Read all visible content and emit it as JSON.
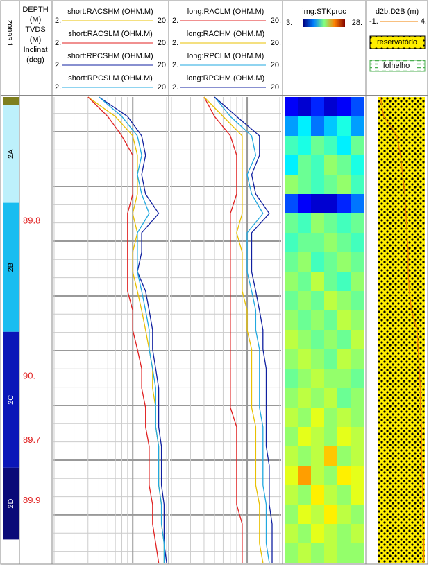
{
  "zones": {
    "title": "zonas 1",
    "intervals": [
      {
        "label": null,
        "color": "#7f7f1e",
        "top": 0,
        "base": 0.43
      },
      {
        "label": "2A",
        "color": "#bdf0fb",
        "top": 0.43,
        "base": 5.45
      },
      {
        "label": "2B",
        "color": "#19bdf0",
        "top": 5.45,
        "base": 12.1
      },
      {
        "label": "2C",
        "color": "#0a16b8",
        "top": 12.1,
        "base": 19.1
      },
      {
        "label": "2D",
        "color": "#0a0a78",
        "top": 19.1,
        "base": 22.8
      }
    ]
  },
  "depth": {
    "header": [
      "DEPTH",
      "(M)",
      "TVDS",
      "(M)",
      "Inclinat",
      "(deg)"
    ],
    "inclination": [
      {
        "value": 89.8,
        "label": "89.8",
        "depth": 6.4
      },
      {
        "value": 90,
        "label": "90.",
        "depth": 14.4
      },
      {
        "value": 89.7,
        "label": "89.7",
        "depth": 17.7
      },
      {
        "value": 89.9,
        "label": "89.9",
        "depth": 20.8
      }
    ]
  },
  "tracks": [
    {
      "curves": [
        {
          "name": "short:RACSHM (OHM.M)",
          "color": "#e8c000",
          "min": {
            "value": 2,
            "label": "2."
          },
          "max": {
            "value": 20,
            "label": "20."
          },
          "values": [
            4,
            7,
            10,
            11,
            11,
            11,
            10,
            11,
            10,
            10,
            11,
            12,
            13,
            14,
            15,
            15,
            16,
            16,
            17,
            17,
            17,
            18,
            18,
            19,
            19
          ]
        },
        {
          "name": "short:RACSLM (OHM.M)",
          "color": "#e02020",
          "min": {
            "value": 2,
            "label": "2."
          },
          "max": {
            "value": 20,
            "label": "20."
          },
          "values": [
            4,
            6,
            8,
            10,
            10,
            10,
            9,
            9,
            9,
            9,
            9,
            10,
            10,
            11,
            12,
            12,
            13,
            13,
            14,
            14,
            14,
            15,
            15,
            16,
            17
          ]
        },
        {
          "name": "short:RPCSHM (OHM.M)",
          "color": "#1020a0",
          "min": {
            "value": 2,
            "label": "2."
          },
          "max": {
            "value": 20,
            "label": "20."
          },
          "values": [
            5,
            9,
            12,
            13,
            12,
            13,
            17,
            12,
            12,
            11,
            13,
            14,
            15,
            15,
            16,
            17,
            17,
            17,
            18,
            18,
            18,
            19,
            19,
            19,
            20
          ]
        },
        {
          "name": "short:RPCSLM (OHM.M)",
          "color": "#20a8e0",
          "min": {
            "value": 2,
            "label": "2."
          },
          "max": {
            "value": 20,
            "label": "20."
          },
          "values": [
            5,
            8,
            11,
            12,
            11,
            12,
            14,
            11,
            11,
            11,
            12,
            13,
            14,
            14,
            15,
            16,
            16,
            16,
            17,
            17,
            17,
            18,
            18,
            19,
            19
          ]
        }
      ]
    },
    {
      "curves": [
        {
          "name": "long:RACLM (OHM.M)",
          "color": "#e02020",
          "min": {
            "value": 2,
            "label": "2."
          },
          "max": {
            "value": 20,
            "label": "20."
          },
          "values": [
            4,
            5,
            7,
            8,
            8,
            8,
            7,
            7,
            7,
            7,
            7,
            7,
            7,
            7,
            7,
            7,
            7,
            8,
            8,
            8,
            8,
            8,
            9,
            9,
            9
          ]
        },
        {
          "name": "long:RACHM (OHM.M)",
          "color": "#e8c000",
          "min": {
            "value": 2,
            "label": "2."
          },
          "max": {
            "value": 20,
            "label": "20."
          },
          "values": [
            4,
            6,
            9,
            9,
            9,
            9,
            9,
            8,
            9,
            9,
            9,
            10,
            10,
            11,
            11,
            11,
            11,
            12,
            12,
            12,
            12,
            13,
            13,
            13,
            14
          ]
        },
        {
          "name": "long:RPCLM (OHM.M)",
          "color": "#20a8e0",
          "min": {
            "value": 2,
            "label": "2."
          },
          "max": {
            "value": 20,
            "label": "20."
          },
          "values": [
            5,
            7,
            11,
            12,
            10,
            11,
            14,
            10,
            10,
            10,
            11,
            12,
            12,
            13,
            13,
            13,
            13,
            14,
            14,
            14,
            14,
            15,
            15,
            15,
            16
          ]
        },
        {
          "name": "long:RPCHM (OHM.M)",
          "color": "#1020a0",
          "min": {
            "value": 2,
            "label": "2."
          },
          "max": {
            "value": 20,
            "label": "20."
          },
          "values": [
            5,
            8,
            13,
            13,
            11,
            12,
            16,
            11,
            11,
            11,
            12,
            13,
            14,
            14,
            15,
            15,
            15,
            15,
            15,
            16,
            16,
            16,
            17,
            17,
            17
          ]
        }
      ]
    }
  ],
  "image": {
    "name": "img:STKproc",
    "min": {
      "value": 3,
      "label": "3."
    },
    "max": {
      "value": 28,
      "label": "28."
    },
    "rows": [
      [
        6,
        5,
        7,
        5,
        6,
        8
      ],
      [
        10,
        12,
        9,
        11,
        13,
        10
      ],
      [
        14,
        13,
        15,
        14,
        12,
        15
      ],
      [
        12,
        15,
        14,
        16,
        15,
        13
      ],
      [
        16,
        15,
        14,
        15,
        16,
        14
      ],
      [
        8,
        6,
        5,
        5,
        7,
        9
      ],
      [
        15,
        14,
        16,
        15,
        14,
        15
      ],
      [
        14,
        15,
        15,
        16,
        15,
        14
      ],
      [
        15,
        16,
        14,
        15,
        16,
        15
      ],
      [
        16,
        15,
        17,
        15,
        14,
        16
      ],
      [
        15,
        16,
        15,
        17,
        16,
        15
      ],
      [
        16,
        15,
        16,
        15,
        17,
        16
      ],
      [
        17,
        16,
        15,
        16,
        15,
        17
      ],
      [
        16,
        17,
        16,
        15,
        17,
        16
      ],
      [
        15,
        16,
        17,
        16,
        16,
        15
      ],
      [
        16,
        17,
        16,
        17,
        15,
        16
      ],
      [
        17,
        16,
        18,
        16,
        17,
        16
      ],
      [
        16,
        18,
        17,
        16,
        18,
        17
      ],
      [
        17,
        16,
        17,
        20,
        16,
        17
      ],
      [
        18,
        21,
        17,
        16,
        19,
        18
      ],
      [
        17,
        16,
        19,
        17,
        16,
        18
      ],
      [
        16,
        18,
        17,
        19,
        17,
        16
      ],
      [
        17,
        16,
        18,
        17,
        16,
        17
      ],
      [
        16,
        17,
        16,
        17,
        16,
        16
      ]
    ]
  },
  "d2b": {
    "name": "d2b:D2B (m)",
    "color": "#f08000",
    "min": {
      "value": -1,
      "label": "-1."
    },
    "max": {
      "value": 4,
      "label": "4."
    },
    "values": [
      0,
      0.3,
      1.5,
      1.8,
      2,
      2.2,
      2.3,
      2.4,
      2.5,
      2.5,
      2.6,
      2.8,
      3.3,
      3.4,
      3.5,
      3.6,
      3.6,
      3.7,
      3.7,
      3.7,
      3.8,
      3.8,
      3.8,
      3.9,
      3.9
    ],
    "legend": [
      "reservatório",
      "folhelho"
    ]
  }
}
